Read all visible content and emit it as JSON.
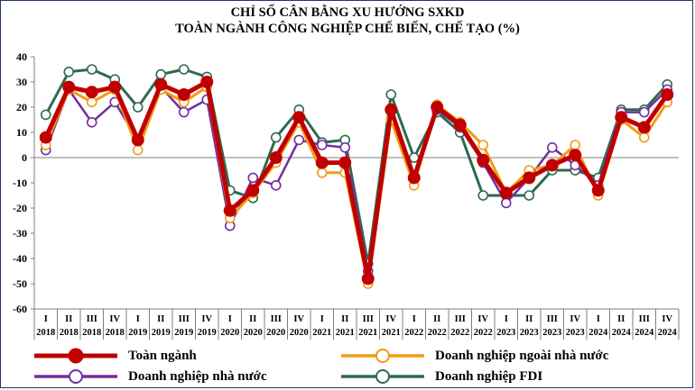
{
  "title_lines": [
    "CHỈ SỐ CÂN BẰNG XU HƯỚNG SXKD",
    "TOÀN NGÀNH CÔNG NGHIỆP CHẾ BIẾN, CHẾ TẠO (%)"
  ],
  "colors": {
    "toan_nganh": "#c00000",
    "ngoai_nha_nuoc": "#f39c12",
    "nha_nuoc": "#7030a0",
    "fdi": "#2e6a4f",
    "frame": "#1f3864"
  },
  "chart_data": {
    "type": "line",
    "title": "CHỈ SỐ CÂN BẰNG XU HƯỚNG SXKD TOÀN NGÀNH CÔNG NGHIỆP CHẾ BIẾN, CHẾ TẠO (%)",
    "ylim": [
      -60,
      40
    ],
    "yticks": [
      40,
      30,
      20,
      10,
      0,
      -10,
      -20,
      -30,
      -40,
      -50,
      -60
    ],
    "quarters": [
      "I",
      "II",
      "III",
      "IV",
      "I",
      "II",
      "III",
      "IV",
      "I",
      "II",
      "III",
      "IV",
      "I",
      "II",
      "III",
      "IV",
      "I",
      "II",
      "III",
      "IV",
      "I",
      "II",
      "III",
      "IV",
      "I",
      "II",
      "III",
      "IV"
    ],
    "years": [
      "2018",
      "2018",
      "2018",
      "2018",
      "2019",
      "2019",
      "2019",
      "2019",
      "2020",
      "2020",
      "2020",
      "2020",
      "2021",
      "2021",
      "2021",
      "2021",
      "2022",
      "2022",
      "2022",
      "2022",
      "2023",
      "2023",
      "2023",
      "2023",
      "2024",
      "2024",
      "2024",
      "2024"
    ],
    "legend_placement": "bottom",
    "grid": false,
    "series": [
      {
        "key": "fdi",
        "name": "Doanh nghiệp FDI",
        "values": [
          17,
          34,
          35,
          31,
          20,
          33,
          35,
          32,
          -13,
          -16,
          8,
          19,
          6,
          7,
          -42,
          25,
          0,
          18,
          10,
          -15,
          -15,
          -15,
          -5,
          -5,
          -8,
          19,
          19,
          29
        ],
        "width": 3,
        "z": 0
      },
      {
        "key": "nha_nuoc",
        "name": "Doanh nghiệp nhà nước",
        "values": [
          3,
          27,
          14,
          22,
          7,
          28,
          18,
          23,
          -27,
          -8,
          -11,
          7,
          5,
          4,
          -45,
          19,
          -7,
          19,
          12,
          -2,
          -18,
          -8,
          4,
          -3,
          -11,
          18,
          18,
          27
        ],
        "width": 2.5,
        "z": 1
      },
      {
        "key": "ngoai_nha_nuoc",
        "name": "Doanh nghiệp ngoài nhà nước",
        "values": [
          5,
          27,
          22,
          27,
          3,
          27,
          22,
          28,
          -24,
          -14,
          -2,
          14,
          -6,
          -6,
          -50,
          15,
          -11,
          21,
          14,
          5,
          -14,
          -5,
          -3,
          5,
          -15,
          15,
          8,
          22
        ],
        "width": 3,
        "z": 2
      },
      {
        "key": "toan_nganh",
        "name": "Toàn ngành",
        "values": [
          8,
          28,
          26,
          28,
          7,
          29,
          25,
          30,
          -21,
          -13,
          0,
          16,
          -2,
          -2,
          -48,
          19,
          -8,
          20,
          13,
          -1,
          -14,
          -8,
          -3,
          1,
          -13,
          16,
          12,
          25
        ],
        "width": 5,
        "z": 3
      }
    ]
  },
  "legend": [
    {
      "key": "toan_nganh",
      "label": "Toàn ngành"
    },
    {
      "key": "ngoai_nha_nuoc",
      "label": "Doanh nghiệp ngoài nhà nước"
    },
    {
      "key": "nha_nuoc",
      "label": "Doanh nghiệp nhà nước"
    },
    {
      "key": "fdi",
      "label": "Doanh nghiệp FDI"
    }
  ]
}
